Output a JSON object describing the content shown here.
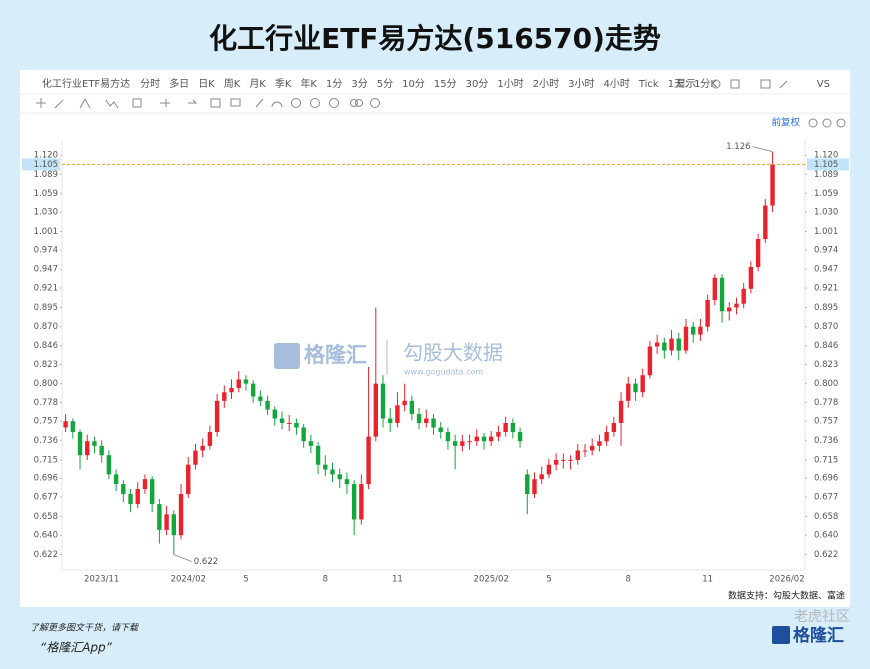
{
  "page": {
    "symbol": "化工行业ETF易方达",
    "periods": [
      "分时",
      "多日",
      "日K",
      "周K",
      "月K",
      "季K",
      "年K",
      "1分",
      "3分",
      "5分",
      "10分",
      "15分",
      "30分",
      "1小时",
      "2小时",
      "3小时",
      "4小时",
      "Tick",
      "1天：1分K"
    ],
    "display": "显示",
    "vs": "VS",
    "adjust": "前复权",
    "source": "数据支持：勾股大数据、富途",
    "footer_line1": "了解更多图文干货，请下载",
    "footer_line2": "“格隆汇App”",
    "watermark_brand": "格隆汇",
    "watermark_data": "勾股大数据",
    "watermark_url": "www.gogudata.com",
    "watermark_community": "老虎社区",
    "logo": "格隆汇"
  },
  "chart_data": {
    "type": "candlestick",
    "title": "化工行业ETF易方达(516570)走势",
    "log_scale": true,
    "up_color": "#e8232e",
    "down_color": "#14a53c",
    "current_price": 1.105,
    "current_color": "#f0a020",
    "high_label": 1.126,
    "low_label": 0.622,
    "ylim": [
      0.608,
      1.132
    ],
    "yticks": [
      {
        "value": 1.12,
        "label": "1.120"
      },
      1.089,
      1.059,
      {
        "value": 1.03,
        "label": "1.030"
      },
      1.001,
      0.974,
      0.947,
      0.921,
      0.895,
      {
        "value": 0.87,
        "label": "0.870"
      },
      0.846,
      0.823,
      {
        "value": 0.8,
        "label": "0.800"
      },
      0.778,
      0.757,
      0.736,
      0.715,
      0.696,
      0.677,
      0.658,
      {
        "value": 0.64,
        "label": "0.640"
      },
      0.622
    ],
    "categories": [
      null,
      null,
      null,
      null,
      null,
      "2023/11",
      null,
      null,
      null,
      null,
      null,
      null,
      null,
      null,
      null,
      null,
      null,
      "2024/02",
      null,
      null,
      null,
      null,
      null,
      null,
      null,
      "5",
      null,
      null,
      null,
      null,
      null,
      null,
      null,
      null,
      null,
      null,
      "8",
      null,
      null,
      null,
      null,
      null,
      null,
      null,
      null,
      null,
      "11",
      null,
      null,
      null,
      null,
      null,
      null,
      null,
      null,
      null,
      null,
      null,
      null,
      "2025/02",
      null,
      null,
      null,
      null,
      null,
      null,
      null,
      "5",
      null,
      null,
      null,
      null,
      null,
      null,
      null,
      null,
      null,
      null,
      "8",
      null,
      null,
      null,
      null,
      null,
      null,
      null,
      null,
      null,
      null,
      "11",
      null,
      null,
      null,
      null,
      null,
      null,
      null,
      null,
      null,
      null,
      "2026/02",
      null,
      null
    ],
    "open": [
      0.75,
      0.757,
      0.745,
      0.72,
      0.735,
      0.73,
      0.72,
      0.7,
      0.69,
      0.68,
      0.67,
      0.685,
      0.695,
      0.67,
      0.645,
      0.66,
      0.64,
      0.68,
      0.71,
      0.725,
      0.73,
      0.745,
      0.78,
      0.79,
      0.795,
      0.805,
      0.8,
      0.785,
      0.78,
      0.77,
      0.76,
      0.755,
      0.755,
      0.75,
      0.735,
      0.73,
      0.71,
      0.705,
      0.7,
      0.695,
      0.69,
      0.655,
      0.69,
      0.74,
      0.8,
      0.76,
      0.755,
      0.775,
      0.78,
      0.765,
      0.755,
      0.76,
      0.75,
      0.745,
      0.735,
      0.73,
      0.735,
      0.735,
      0.74,
      0.735,
      0.74,
      0.745,
      0.755,
      0.745,
      0.7,
      0.68,
      0.695,
      0.7,
      0.71,
      0.715,
      0.715,
      0.715,
      0.725,
      0.725,
      0.73,
      0.735,
      0.745,
      0.755,
      0.78,
      0.8,
      0.79,
      0.81,
      0.845,
      0.85,
      0.84,
      0.855,
      0.84,
      0.87,
      0.86,
      0.87,
      0.905,
      0.935,
      0.89,
      0.895,
      0.9,
      0.92,
      0.95,
      0.99,
      1.04,
      null,
      null,
      null,
      null
    ],
    "high": [
      0.765,
      0.76,
      0.748,
      0.742,
      0.74,
      0.736,
      0.725,
      0.705,
      0.694,
      0.685,
      0.692,
      0.7,
      0.698,
      0.675,
      0.668,
      0.664,
      0.69,
      0.718,
      0.732,
      0.738,
      0.752,
      0.788,
      0.798,
      0.805,
      0.815,
      0.81,
      0.804,
      0.792,
      0.786,
      0.774,
      0.768,
      0.764,
      0.76,
      0.754,
      0.742,
      0.734,
      0.72,
      0.712,
      0.706,
      0.702,
      0.694,
      0.7,
      0.82,
      0.895,
      0.81,
      0.772,
      0.79,
      0.8,
      0.786,
      0.772,
      0.77,
      0.765,
      0.756,
      0.75,
      0.742,
      0.742,
      0.742,
      0.748,
      0.744,
      0.746,
      0.752,
      0.762,
      0.76,
      0.75,
      0.705,
      0.702,
      0.708,
      0.716,
      0.722,
      0.722,
      0.72,
      0.732,
      0.732,
      0.738,
      0.742,
      0.752,
      0.762,
      0.79,
      0.808,
      0.806,
      0.818,
      0.852,
      0.86,
      0.856,
      0.866,
      0.862,
      0.88,
      0.876,
      0.88,
      0.912,
      0.94,
      0.94,
      0.902,
      0.908,
      0.928,
      0.958,
      0.998,
      1.05,
      1.126,
      null,
      null,
      null,
      null
    ],
    "low": [
      0.745,
      0.738,
      0.705,
      0.715,
      0.722,
      0.712,
      0.695,
      0.683,
      0.672,
      0.662,
      0.666,
      0.68,
      0.662,
      0.632,
      0.64,
      0.622,
      0.636,
      0.676,
      0.705,
      0.718,
      0.726,
      0.74,
      0.772,
      0.782,
      0.79,
      0.792,
      0.778,
      0.774,
      0.764,
      0.752,
      0.748,
      0.746,
      0.742,
      0.728,
      0.722,
      0.7,
      0.698,
      0.692,
      0.686,
      0.68,
      0.64,
      0.65,
      0.685,
      0.735,
      0.75,
      0.745,
      0.75,
      0.768,
      0.758,
      0.748,
      0.75,
      0.742,
      0.738,
      0.726,
      0.705,
      0.724,
      0.726,
      0.73,
      0.726,
      0.73,
      0.735,
      0.74,
      0.738,
      0.728,
      0.66,
      0.676,
      0.69,
      0.696,
      0.704,
      0.706,
      0.705,
      0.71,
      0.718,
      0.72,
      0.724,
      0.73,
      0.74,
      0.73,
      0.772,
      0.78,
      0.784,
      0.806,
      0.836,
      0.83,
      0.834,
      0.828,
      0.836,
      0.85,
      0.852,
      0.864,
      0.898,
      0.875,
      0.878,
      0.886,
      0.894,
      0.914,
      0.944,
      0.984,
      1.03,
      null,
      null,
      null,
      null
    ],
    "close": [
      0.757,
      0.745,
      0.72,
      0.735,
      0.73,
      0.72,
      0.7,
      0.69,
      0.68,
      0.67,
      0.685,
      0.695,
      0.67,
      0.645,
      0.66,
      0.64,
      0.68,
      0.71,
      0.725,
      0.73,
      0.745,
      0.78,
      0.79,
      0.795,
      0.805,
      0.8,
      0.785,
      0.78,
      0.77,
      0.76,
      0.755,
      0.755,
      0.75,
      0.735,
      0.73,
      0.71,
      0.705,
      0.7,
      0.695,
      0.69,
      0.655,
      0.69,
      0.74,
      0.8,
      0.76,
      0.755,
      0.775,
      0.78,
      0.765,
      0.755,
      0.76,
      0.75,
      0.745,
      0.735,
      0.73,
      0.735,
      0.735,
      0.74,
      0.735,
      0.74,
      0.745,
      0.755,
      0.745,
      0.735,
      0.68,
      0.695,
      0.7,
      0.71,
      0.715,
      0.715,
      0.715,
      0.725,
      0.725,
      0.73,
      0.735,
      0.745,
      0.755,
      0.78,
      0.8,
      0.79,
      0.81,
      0.845,
      0.85,
      0.84,
      0.855,
      0.84,
      0.87,
      0.86,
      0.87,
      0.905,
      0.935,
      0.89,
      0.895,
      0.9,
      0.92,
      0.95,
      0.99,
      1.04,
      1.105,
      null,
      null,
      null,
      null
    ]
  }
}
